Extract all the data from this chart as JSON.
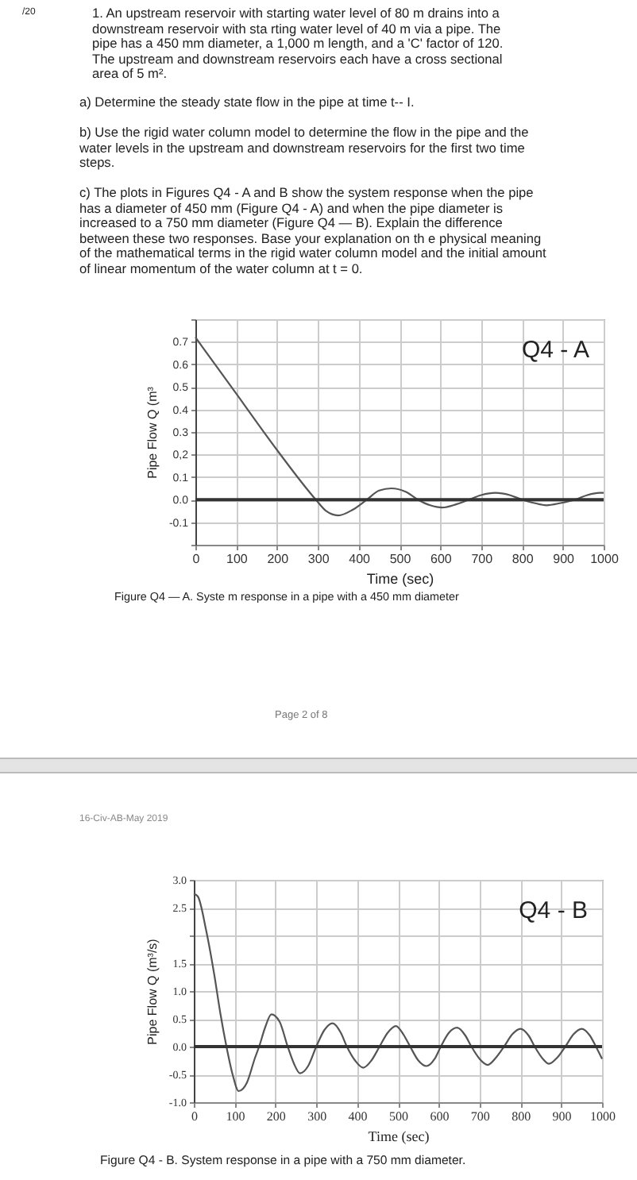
{
  "chart_data": [
    {
      "type": "line",
      "xlabel": "Time (sec)",
      "ylabel": "Pipe Flow  Q  (m³",
      "x": [
        0,
        100,
        200,
        295,
        320,
        350,
        385,
        420,
        450,
        480,
        515,
        545,
        575,
        605,
        640,
        670,
        700,
        735,
        770,
        800,
        830,
        860,
        895,
        930,
        960,
        990,
        1000
      ],
      "series": [
        {
          "color": "#555555",
          "values": [
            0.72,
            0.47,
            0.22,
            0,
            -0.05,
            -0.07,
            -0.045,
            0,
            0.04,
            0.05,
            0.035,
            0,
            -0.025,
            -0.035,
            -0.02,
            0,
            0.02,
            0.03,
            0.02,
            0,
            -0.015,
            -0.025,
            -0.015,
            0,
            0.02,
            0.03,
            0.03
          ]
        }
      ],
      "xlim": [
        0,
        1000
      ],
      "xticks": [
        0,
        100,
        200,
        300,
        400,
        500,
        600,
        700,
        800,
        900,
        1000
      ],
      "ylim": [
        -0.2,
        0.8
      ],
      "yticks": [
        {
          "value": -0.2,
          "label": null
        },
        -0.1,
        {
          "value": 0,
          "label": "0.0"
        },
        0.1,
        {
          "value": 0.2,
          "label": "0,2"
        },
        0.3,
        0.4,
        0.5,
        0.6,
        0.7,
        {
          "value": 0.8,
          "label": null
        }
      ],
      "grid": true,
      "ref_lines": [
        {
          "axis": "y",
          "value": 0
        }
      ],
      "annotations": [
        "Q4 - A",
        "Figure Q4 — A.   Syste m response in a pipe with a 450 mm diameter",
        "/20",
        "1. An upstream reservoir with starting water level of 80 m drains into a downstream reservoir with sta rting water level of 40 m via a pipe. The pipe has a 450 mm diameter, a 1,000 m length, and a 'C' factor of 120. The upstream and downstream reservoirs each have a cross sectional area of 5 m².",
        "a) Determine the steady state flow in the pipe at time t-- I.",
        "b) Use the rigid water column model to determine  the flow in the pipe and the water levels in the upstream and downstream reservoirs for the first two time steps.",
        "c) The plots in Figures Q4 - A and B show the system response when the pipe has a diameter of 450 mm (Figure Q4 - A) and when the pipe diameter is increased to a 750 mm diameter (Figure Q4 — B). Explain the difference between these two responses. Base your explanation on th e physical meaning of the mathematical terms in the rigid water column model and the initial amount of linear momentum of the water column at t = 0.",
        "Page 2 of 8"
      ]
    },
    {
      "type": "line",
      "xlabel": "Time (sec)",
      "ylabel": "Pipe Flow  Q  (m³/s)",
      "x": [
        0,
        10,
        30,
        50,
        65,
        80,
        95,
        110,
        130,
        150,
        160,
        175,
        190,
        210,
        230,
        245,
        260,
        280,
        300,
        320,
        340,
        360,
        375,
        395,
        415,
        435,
        455,
        475,
        495,
        515,
        530,
        550,
        570,
        590,
        605,
        625,
        645,
        665,
        680,
        700,
        720,
        740,
        760,
        780,
        800,
        820,
        835,
        855,
        870,
        890,
        910,
        930,
        950,
        970,
        985,
        1000
      ],
      "series": [
        {
          "color": "#555555",
          "values": [
            2.75,
            2.7,
            2.1,
            1.3,
            0.6,
            0,
            -0.5,
            -0.8,
            -0.65,
            -0.2,
            0,
            0.35,
            0.58,
            0.45,
            0,
            -0.3,
            -0.48,
            -0.35,
            0,
            0.3,
            0.42,
            0.25,
            0,
            -0.25,
            -0.38,
            -0.25,
            0,
            0.25,
            0.37,
            0.2,
            0,
            -0.25,
            -0.35,
            -0.22,
            0,
            0.25,
            0.34,
            0.2,
            0,
            -0.22,
            -0.33,
            -0.2,
            0,
            0.22,
            0.32,
            0.2,
            0,
            -0.22,
            -0.31,
            -0.2,
            0,
            0.22,
            0.32,
            0.2,
            0,
            -0.22
          ]
        }
      ],
      "xlim": [
        0,
        1000
      ],
      "xticks": [
        0,
        100,
        200,
        300,
        400,
        500,
        600,
        700,
        800,
        900,
        1000
      ],
      "ylim": [
        -1,
        3
      ],
      "yticks": [
        {
          "value": -1,
          "label": "-1.0"
        },
        -0.5,
        {
          "value": 0,
          "label": "0.0"
        },
        0.5,
        {
          "value": 1,
          "label": "1.0"
        },
        1.5,
        {
          "value": 2,
          "label": null
        },
        2.5,
        {
          "value": 3,
          "label": "3.0"
        }
      ],
      "grid": true,
      "ref_lines": [
        {
          "axis": "y",
          "value": 0
        }
      ],
      "annotations": [
        "Q4 - B",
        "Figure Q4 - B. System response in a pipe with a 750 mm diameter.",
        "16-Civ-AB-May 2019"
      ]
    }
  ]
}
